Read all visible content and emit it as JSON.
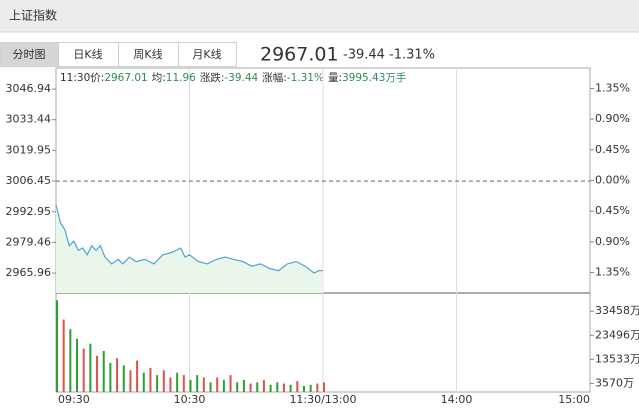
{
  "header": {
    "title": "上证指数"
  },
  "tabs": {
    "items": [
      "分时图",
      "日K线",
      "周K线",
      "月K线"
    ],
    "active": 0
  },
  "quote": {
    "price": "2967.01",
    "change": "-39.44",
    "change_pct": "-1.31%"
  },
  "info": {
    "time": "11:30",
    "items": [
      {
        "label": "价:",
        "value": "2967.01"
      },
      {
        "label": "均:",
        "value": "11.96"
      },
      {
        "label": "涨跌:",
        "value": "-39.44"
      },
      {
        "label": "涨幅:",
        "value": "-1.31%"
      },
      {
        "label": "量:",
        "value": "3995.43万手"
      }
    ]
  },
  "chart_data": [
    {
      "type": "line",
      "x": [
        0,
        2,
        4,
        6,
        8,
        10,
        12,
        14,
        16,
        18,
        20,
        22,
        25,
        28,
        30,
        33,
        36,
        40,
        44,
        48,
        52,
        56,
        58,
        60,
        64,
        68,
        72,
        76,
        80,
        84,
        88,
        92,
        96,
        100,
        104,
        108,
        112,
        116,
        118,
        120
      ],
      "values": [
        2996,
        2988,
        2985,
        2978,
        2980,
        2976,
        2977,
        2974,
        2978,
        2976,
        2978,
        2973,
        2970,
        2972,
        2970,
        2973,
        2971,
        2972,
        2970,
        2974,
        2975,
        2977,
        2973,
        2974,
        2971,
        2970,
        2972,
        2973,
        2972,
        2971,
        2969,
        2970,
        2968,
        2967,
        2970,
        2971,
        2969,
        2966,
        2967,
        2967
      ],
      "color": "#4da3d9",
      "fill": "#e9f6e9",
      "xlim": [
        0,
        240
      ],
      "xticks": [
        {
          "value": 0,
          "label": "09:30"
        },
        {
          "value": 60,
          "label": "10:30"
        },
        {
          "value": 120,
          "label": "11:30/13:00"
        },
        {
          "value": 180,
          "label": "14:00"
        },
        {
          "value": 240,
          "label": "15:00"
        }
      ],
      "ylim": [
        2957.2,
        3056.2
      ],
      "yticks": [
        3046.94,
        3033.44,
        3019.95,
        3006.45,
        2992.95,
        2979.46,
        2965.96
      ],
      "y2lim": [
        -1.65,
        1.65
      ],
      "y2ticks": [
        {
          "value": 1.35,
          "label": "1.35%"
        },
        {
          "value": 0.9,
          "label": "0.90%"
        },
        {
          "value": 0.45,
          "label": "0.45%"
        },
        {
          "value": 0,
          "label": "0.00%"
        },
        {
          "value": -0.45,
          "label": "0.45%"
        },
        {
          "value": -0.9,
          "label": "0.90%"
        },
        {
          "value": -1.35,
          "label": "1.35%"
        }
      ],
      "reference_line": 3006.45
    },
    {
      "type": "bar",
      "x": [
        0,
        3,
        6,
        9,
        12,
        15,
        18,
        21,
        24,
        27,
        30,
        33,
        36,
        39,
        42,
        45,
        48,
        51,
        54,
        57,
        60,
        63,
        66,
        69,
        72,
        75,
        78,
        81,
        84,
        87,
        90,
        93,
        96,
        99,
        102,
        105,
        108,
        111,
        114,
        117,
        120
      ],
      "values": [
        38000,
        30000,
        26000,
        22000,
        18000,
        20000,
        15000,
        17000,
        12000,
        14000,
        11000,
        9000,
        13000,
        8000,
        10000,
        7000,
        9000,
        6000,
        8000,
        7000,
        5000,
        7000,
        6000,
        4000,
        6000,
        5000,
        7000,
        4000,
        5000,
        3500,
        4000,
        5000,
        3000,
        4000,
        3500,
        3000,
        4500,
        2500,
        3000,
        3500,
        4000
      ],
      "bar_colors": [
        "#2e9e2e",
        "#d9534f",
        "#2e9e2e",
        "#2e9e2e",
        "#d9534f",
        "#2e9e2e",
        "#d9534f",
        "#2e9e2e",
        "#2e9e2e",
        "#d9534f",
        "#2e9e2e",
        "#d9534f",
        "#d9534f",
        "#2e9e2e",
        "#d9534f",
        "#2e9e2e",
        "#d9534f",
        "#d9534f",
        "#2e9e2e",
        "#d9534f",
        "#2e9e2e",
        "#2e9e2e",
        "#d9534f",
        "#2e9e2e",
        "#d9534f",
        "#2e9e2e",
        "#d9534f",
        "#2e9e2e",
        "#2e9e2e",
        "#d9534f",
        "#2e9e2e",
        "#d9534f",
        "#2e9e2e",
        "#2e9e2e",
        "#d9534f",
        "#2e9e2e",
        "#d9534f",
        "#2e9e2e",
        "#2e9e2e",
        "#d9534f",
        "#d9534f"
      ],
      "xlim": [
        0,
        240
      ],
      "ylim": [
        0,
        41000
      ],
      "yticks": [
        {
          "value": 33458,
          "label": "33458万"
        },
        {
          "value": 23496,
          "label": "23496万"
        },
        {
          "value": 13533,
          "label": "13533万"
        },
        {
          "value": 3570,
          "label": "3570万"
        }
      ]
    }
  ]
}
